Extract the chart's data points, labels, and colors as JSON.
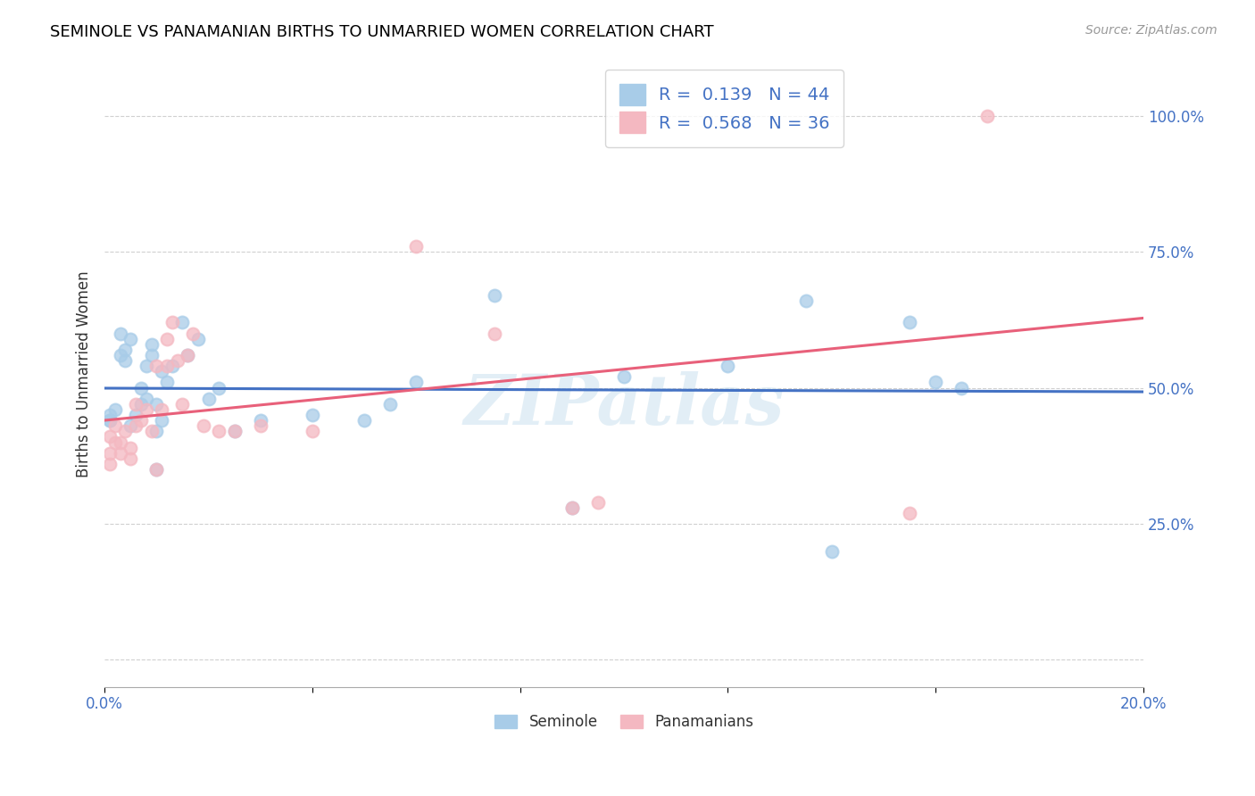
{
  "title": "SEMINOLE VS PANAMANIAN BIRTHS TO UNMARRIED WOMEN CORRELATION CHART",
  "source": "Source: ZipAtlas.com",
  "ylabel": "Births to Unmarried Women",
  "xlim": [
    0.0,
    0.2
  ],
  "ylim": [
    -0.05,
    1.1
  ],
  "x_tick_positions": [
    0.0,
    0.04,
    0.08,
    0.12,
    0.16,
    0.2
  ],
  "x_tick_labels": [
    "0.0%",
    "",
    "",
    "",
    "",
    "20.0%"
  ],
  "y_tick_positions": [
    0.0,
    0.25,
    0.5,
    0.75,
    1.0
  ],
  "y_tick_labels": [
    "",
    "25.0%",
    "50.0%",
    "75.0%",
    "100.0%"
  ],
  "seminole_R": 0.139,
  "seminole_N": 44,
  "panamanian_R": 0.568,
  "panamanian_N": 36,
  "seminole_color": "#a8cce8",
  "panamanian_color": "#f4b8c1",
  "trendline_seminole_color": "#4472c4",
  "trendline_panamanian_color": "#e8607a",
  "watermark": "ZIPatlas",
  "seminole_x": [
    0.001,
    0.001,
    0.001,
    0.002,
    0.003,
    0.003,
    0.004,
    0.004,
    0.005,
    0.005,
    0.006,
    0.007,
    0.007,
    0.008,
    0.008,
    0.009,
    0.009,
    0.01,
    0.01,
    0.01,
    0.011,
    0.011,
    0.012,
    0.013,
    0.015,
    0.016,
    0.018,
    0.02,
    0.022,
    0.025,
    0.03,
    0.04,
    0.05,
    0.055,
    0.06,
    0.075,
    0.09,
    0.1,
    0.12,
    0.135,
    0.14,
    0.155,
    0.16,
    0.165
  ],
  "seminole_y": [
    0.44,
    0.44,
    0.45,
    0.46,
    0.56,
    0.6,
    0.55,
    0.57,
    0.43,
    0.59,
    0.45,
    0.47,
    0.5,
    0.48,
    0.54,
    0.56,
    0.58,
    0.35,
    0.42,
    0.47,
    0.44,
    0.53,
    0.51,
    0.54,
    0.62,
    0.56,
    0.59,
    0.48,
    0.5,
    0.42,
    0.44,
    0.45,
    0.44,
    0.47,
    0.51,
    0.67,
    0.28,
    0.52,
    0.54,
    0.66,
    0.2,
    0.62,
    0.51,
    0.5
  ],
  "panamanian_x": [
    0.001,
    0.001,
    0.001,
    0.002,
    0.002,
    0.003,
    0.003,
    0.004,
    0.005,
    0.005,
    0.006,
    0.006,
    0.007,
    0.008,
    0.009,
    0.01,
    0.01,
    0.011,
    0.012,
    0.012,
    0.013,
    0.014,
    0.015,
    0.016,
    0.017,
    0.019,
    0.022,
    0.025,
    0.03,
    0.04,
    0.06,
    0.075,
    0.09,
    0.095,
    0.155,
    0.17
  ],
  "panamanian_y": [
    0.36,
    0.38,
    0.41,
    0.4,
    0.43,
    0.38,
    0.4,
    0.42,
    0.37,
    0.39,
    0.43,
    0.47,
    0.44,
    0.46,
    0.42,
    0.35,
    0.54,
    0.46,
    0.54,
    0.59,
    0.62,
    0.55,
    0.47,
    0.56,
    0.6,
    0.43,
    0.42,
    0.42,
    0.43,
    0.42,
    0.76,
    0.6,
    0.28,
    0.29,
    0.27,
    1.0
  ],
  "legend_label_seminole": "Seminole",
  "legend_label_panamanian": "Panamanians"
}
